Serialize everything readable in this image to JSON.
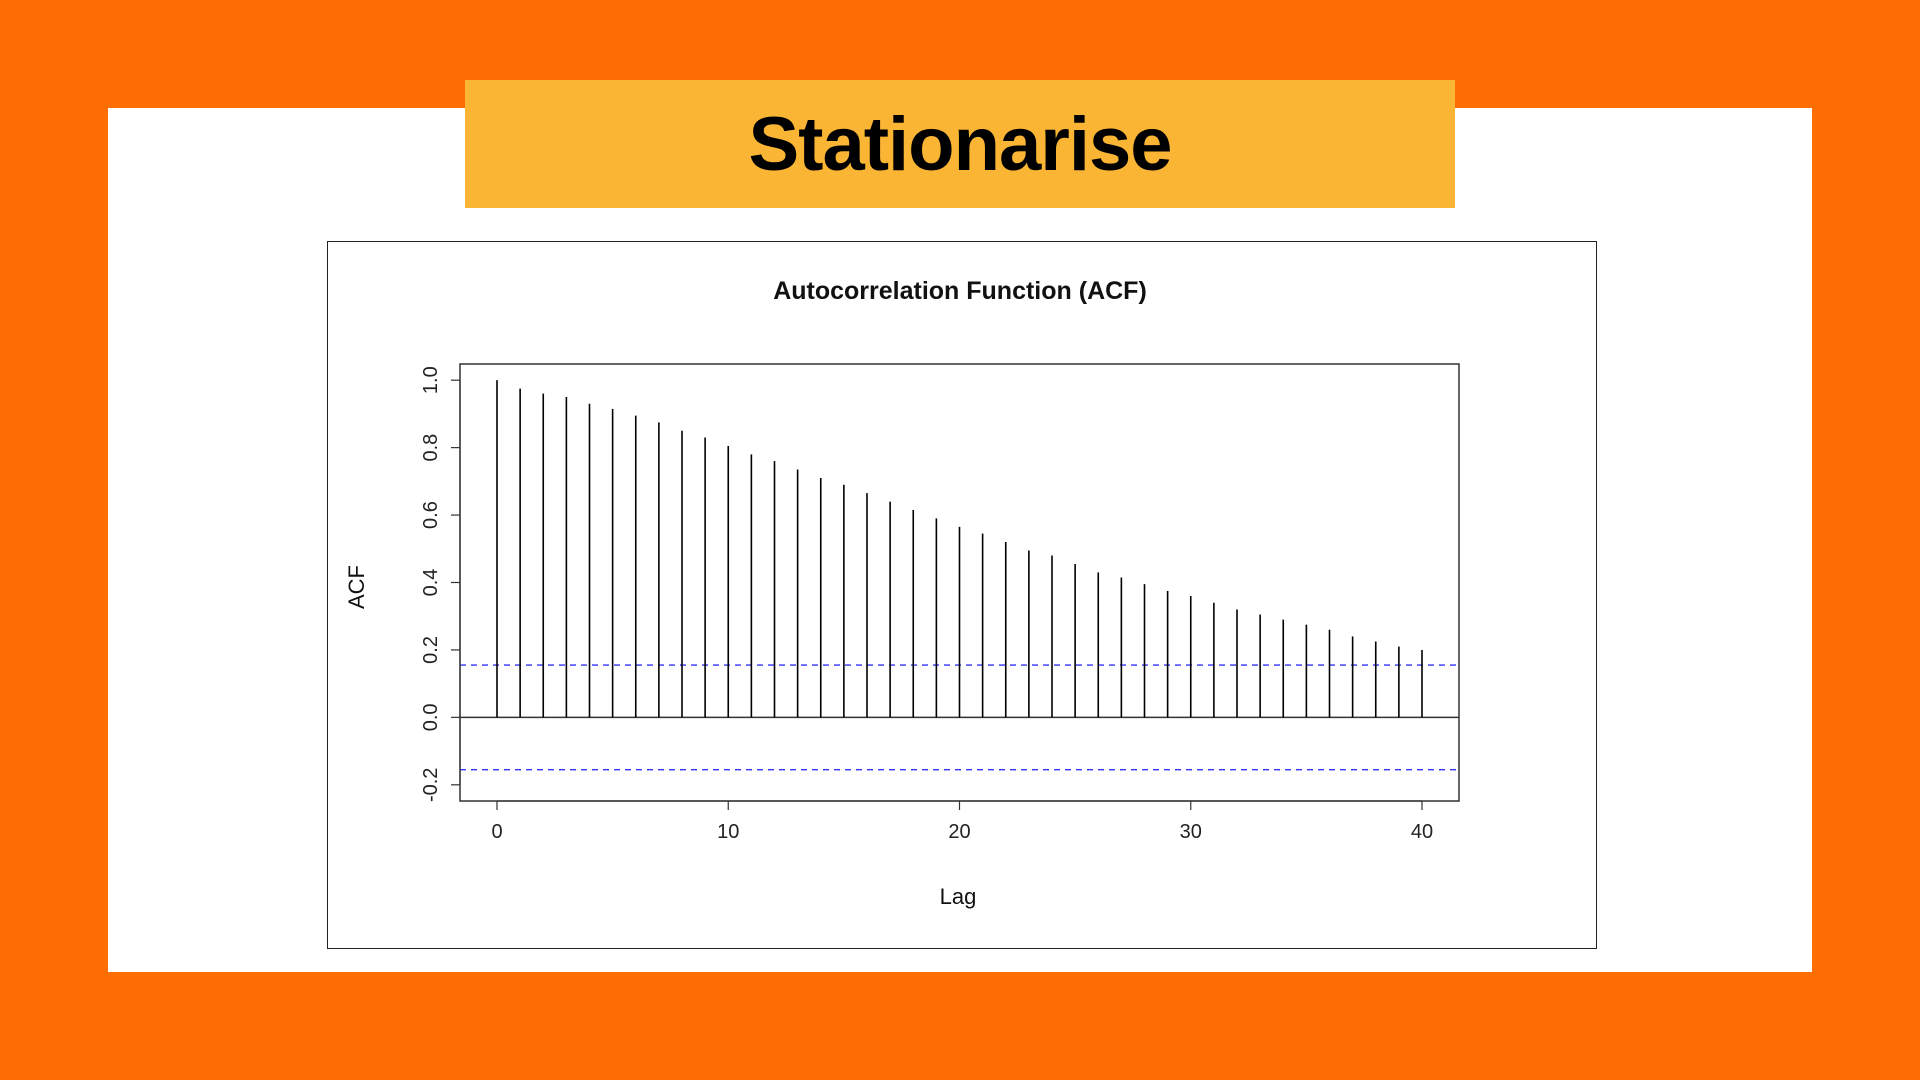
{
  "slide": {
    "title": "Stationarise"
  },
  "colors": {
    "background": "#FF6E04",
    "panel": "#FFFFFF",
    "banner": "#FBB534",
    "bars": "#000000",
    "confidence_lines": "#3333FF"
  },
  "chart_data": {
    "type": "bar",
    "title": "Autocorrelation Function (ACF)",
    "xlabel": "Lag",
    "ylabel": "ACF",
    "x": [
      0,
      1,
      2,
      3,
      4,
      5,
      6,
      7,
      8,
      9,
      10,
      11,
      12,
      13,
      14,
      15,
      16,
      17,
      18,
      19,
      20,
      21,
      22,
      23,
      24,
      25,
      26,
      27,
      28,
      29,
      30,
      31,
      32,
      33,
      34,
      35,
      36,
      37,
      38,
      39,
      40
    ],
    "values": [
      1.0,
      0.975,
      0.96,
      0.95,
      0.93,
      0.915,
      0.895,
      0.875,
      0.85,
      0.83,
      0.805,
      0.78,
      0.76,
      0.735,
      0.71,
      0.69,
      0.665,
      0.64,
      0.615,
      0.59,
      0.565,
      0.545,
      0.52,
      0.495,
      0.48,
      0.455,
      0.43,
      0.415,
      0.395,
      0.375,
      0.36,
      0.34,
      0.32,
      0.305,
      0.29,
      0.275,
      0.26,
      0.24,
      0.225,
      0.21,
      0.2
    ],
    "confidence_band": [
      -0.155,
      0.155
    ],
    "xlim": [
      -1.6,
      41.6
    ],
    "ylim": [
      -0.2,
      1.0
    ],
    "xticks": [
      0,
      10,
      20,
      30,
      40
    ],
    "yticks": [
      -0.2,
      0.0,
      0.2,
      0.4,
      0.6,
      0.8,
      1.0
    ],
    "xtick_labels": [
      "0",
      "10",
      "20",
      "30",
      "40"
    ],
    "ytick_labels": [
      "-0.2",
      "0.0",
      "0.2",
      "0.4",
      "0.6",
      "0.8",
      "1.0"
    ],
    "grid": false,
    "zero_line": true
  }
}
